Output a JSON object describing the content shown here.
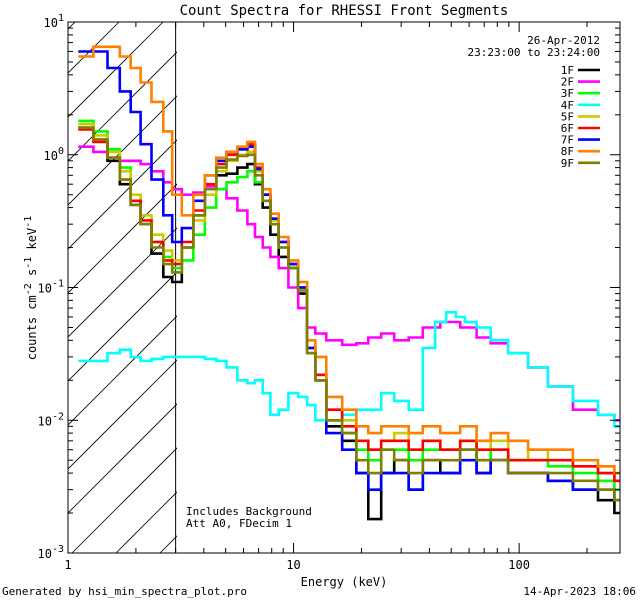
{
  "chart_data": {
    "type": "line",
    "title": "Count Spectra for RHESSI Front Segments",
    "xlabel": "Energy (keV)",
    "ylabel": "counts cm-2 s-1 keV-1",
    "xscale": "log",
    "yscale": "log",
    "xlim": [
      1,
      280
    ],
    "ylim": [
      0.001,
      10
    ],
    "x_ticks": [
      {
        "value": 1,
        "label": "1"
      },
      {
        "value": 10,
        "label": "10"
      },
      {
        "value": 100,
        "label": "100"
      }
    ],
    "y_ticks": [
      {
        "value": 0.001,
        "mant": "10",
        "exp": "-3"
      },
      {
        "value": 0.01,
        "mant": "10",
        "exp": "-2"
      },
      {
        "value": 0.1,
        "mant": "10",
        "exp": "-1"
      },
      {
        "value": 1,
        "mant": "10",
        "exp": "0"
      },
      {
        "value": 10,
        "mant": "10",
        "exp": "1"
      }
    ],
    "date": "26-Apr-2012",
    "time_range": "23:23:00 to 23:24:00",
    "annotations": [
      "Includes Background",
      "Att A0, FDecim 1"
    ],
    "shaded_below_energy": 3,
    "legend_position": "top-right",
    "series": [
      {
        "name": "1F",
        "color": "#000000",
        "x": [
          1.2,
          1.4,
          1.6,
          1.8,
          2.0,
          2.2,
          2.5,
          2.8,
          3.0,
          3.4,
          3.8,
          4.3,
          4.8,
          5.3,
          6.0,
          6.5,
          7.0,
          7.6,
          8.2,
          9.0,
          10,
          11,
          12,
          13,
          15,
          18,
          20,
          23,
          26,
          30,
          35,
          40,
          50,
          60,
          70,
          80,
          100,
          120,
          150,
          200,
          250,
          280
        ],
        "y": [
          1.6,
          1.3,
          0.9,
          0.6,
          0.42,
          0.3,
          0.18,
          0.12,
          0.11,
          0.2,
          0.35,
          0.55,
          0.7,
          0.72,
          0.8,
          0.85,
          0.6,
          0.4,
          0.25,
          0.17,
          0.14,
          0.09,
          0.032,
          0.02,
          0.009,
          0.007,
          0.004,
          0.0018,
          0.004,
          0.005,
          0.003,
          0.005,
          0.004,
          0.006,
          0.004,
          0.005,
          0.004,
          0.004,
          0.0035,
          0.003,
          0.0025,
          0.002
        ]
      },
      {
        "name": "2F",
        "color": "#ff00ff",
        "x": [
          1.2,
          1.4,
          1.6,
          1.8,
          2.0,
          2.2,
          2.5,
          2.8,
          3.0,
          3.4,
          3.8,
          4.3,
          4.8,
          5.3,
          6.0,
          6.5,
          7.0,
          7.6,
          8.2,
          9.0,
          10,
          11,
          12,
          13,
          15,
          18,
          20,
          23,
          26,
          30,
          35,
          40,
          50,
          60,
          70,
          80,
          100,
          120,
          150,
          200,
          250,
          280
        ],
        "y": [
          1.15,
          1.05,
          0.95,
          0.9,
          0.9,
          0.85,
          0.75,
          0.62,
          0.55,
          0.5,
          0.52,
          0.58,
          0.55,
          0.47,
          0.38,
          0.3,
          0.24,
          0.2,
          0.17,
          0.14,
          0.1,
          0.07,
          0.05,
          0.045,
          0.04,
          0.037,
          0.038,
          0.042,
          0.045,
          0.04,
          0.042,
          0.05,
          0.055,
          0.05,
          0.042,
          0.038,
          0.032,
          0.025,
          0.018,
          0.012,
          0.011,
          0.01
        ]
      },
      {
        "name": "3F",
        "color": "#00ff00",
        "x": [
          1.2,
          1.4,
          1.6,
          1.8,
          2.0,
          2.2,
          2.5,
          2.8,
          3.0,
          3.4,
          3.8,
          4.3,
          4.8,
          5.3,
          6.0,
          6.5,
          7.0,
          7.6,
          8.2,
          9.0,
          10,
          11,
          12,
          13,
          15,
          18,
          20,
          23,
          26,
          30,
          35,
          40,
          50,
          60,
          70,
          80,
          100,
          120,
          150,
          200,
          250,
          280
        ],
        "y": [
          1.8,
          1.5,
          1.1,
          0.8,
          0.45,
          0.3,
          0.22,
          0.17,
          0.14,
          0.16,
          0.25,
          0.4,
          0.55,
          0.62,
          0.68,
          0.75,
          0.62,
          0.45,
          0.3,
          0.2,
          0.14,
          0.1,
          0.035,
          0.022,
          0.01,
          0.008,
          0.006,
          0.005,
          0.006,
          0.006,
          0.005,
          0.006,
          0.006,
          0.007,
          0.005,
          0.006,
          0.005,
          0.005,
          0.0045,
          0.004,
          0.0035,
          0.003
        ]
      },
      {
        "name": "4F",
        "color": "#00ffff",
        "x": [
          1.2,
          1.4,
          1.6,
          1.8,
          2.0,
          2.2,
          2.5,
          2.8,
          3.0,
          3.4,
          3.8,
          4.3,
          4.8,
          5.3,
          6.0,
          6.5,
          7.0,
          7.6,
          8.2,
          9.0,
          10,
          11,
          12,
          13,
          15,
          18,
          20,
          23,
          26,
          30,
          35,
          40,
          45,
          50,
          55,
          60,
          70,
          80,
          100,
          120,
          150,
          200,
          250,
          280
        ],
        "y": [
          0.028,
          0.028,
          0.032,
          0.034,
          0.03,
          0.028,
          0.029,
          0.03,
          0.03,
          0.03,
          0.03,
          0.029,
          0.028,
          0.025,
          0.02,
          0.019,
          0.02,
          0.016,
          0.011,
          0.012,
          0.016,
          0.015,
          0.013,
          0.01,
          0.01,
          0.011,
          0.012,
          0.012,
          0.016,
          0.014,
          0.012,
          0.035,
          0.055,
          0.065,
          0.06,
          0.055,
          0.05,
          0.04,
          0.032,
          0.025,
          0.018,
          0.014,
          0.011,
          0.009
        ]
      },
      {
        "name": "5F",
        "color": "#cccc00",
        "x": [
          1.2,
          1.4,
          1.6,
          1.8,
          2.0,
          2.2,
          2.5,
          2.8,
          3.0,
          3.4,
          3.8,
          4.3,
          4.8,
          5.3,
          6.0,
          6.5,
          7.0,
          7.6,
          8.2,
          9.0,
          10,
          11,
          12,
          13,
          15,
          18,
          20,
          23,
          26,
          30,
          35,
          40,
          50,
          60,
          70,
          80,
          100,
          120,
          150,
          200,
          250,
          280
        ],
        "y": [
          1.7,
          1.4,
          1.05,
          0.75,
          0.5,
          0.35,
          0.25,
          0.19,
          0.16,
          0.2,
          0.32,
          0.5,
          0.75,
          0.9,
          1.0,
          1.05,
          0.75,
          0.5,
          0.32,
          0.22,
          0.15,
          0.1,
          0.035,
          0.022,
          0.012,
          0.01,
          0.007,
          0.006,
          0.007,
          0.008,
          0.006,
          0.007,
          0.006,
          0.007,
          0.006,
          0.007,
          0.005,
          0.006,
          0.005,
          0.0045,
          0.004,
          0.0035
        ]
      },
      {
        "name": "6F",
        "color": "#ff0000",
        "x": [
          1.2,
          1.4,
          1.6,
          1.8,
          2.0,
          2.2,
          2.5,
          2.8,
          3.0,
          3.4,
          3.8,
          4.3,
          4.8,
          5.3,
          6.0,
          6.5,
          7.0,
          7.6,
          8.2,
          9.0,
          10,
          11,
          12,
          13,
          15,
          18,
          20,
          23,
          26,
          30,
          35,
          40,
          50,
          60,
          70,
          80,
          100,
          120,
          150,
          200,
          250,
          280
        ],
        "y": [
          1.55,
          1.25,
          0.95,
          0.65,
          0.45,
          0.32,
          0.22,
          0.16,
          0.15,
          0.22,
          0.38,
          0.6,
          0.85,
          1.0,
          1.1,
          1.2,
          0.8,
          0.5,
          0.33,
          0.22,
          0.15,
          0.1,
          0.035,
          0.022,
          0.012,
          0.009,
          0.007,
          0.006,
          0.007,
          0.007,
          0.006,
          0.007,
          0.006,
          0.007,
          0.006,
          0.006,
          0.005,
          0.005,
          0.005,
          0.0045,
          0.004,
          0.0035
        ]
      },
      {
        "name": "7F",
        "color": "#0000ff",
        "x": [
          1.2,
          1.4,
          1.6,
          1.8,
          2.0,
          2.2,
          2.5,
          2.8,
          3.0,
          3.4,
          3.8,
          4.3,
          4.8,
          5.3,
          6.0,
          6.5,
          7.0,
          7.6,
          8.2,
          9.0,
          10,
          11,
          12,
          13,
          15,
          18,
          20,
          23,
          26,
          30,
          35,
          40,
          50,
          60,
          70,
          80,
          100,
          120,
          150,
          200,
          250,
          280
        ],
        "y": [
          6.0,
          6.0,
          4.5,
          3.0,
          2.1,
          1.2,
          0.65,
          0.35,
          0.22,
          0.28,
          0.45,
          0.7,
          0.9,
          1.05,
          1.1,
          1.15,
          0.78,
          0.5,
          0.33,
          0.22,
          0.15,
          0.1,
          0.035,
          0.02,
          0.008,
          0.006,
          0.004,
          0.003,
          0.004,
          0.004,
          0.003,
          0.004,
          0.004,
          0.005,
          0.004,
          0.005,
          0.004,
          0.004,
          0.0035,
          0.003,
          0.003,
          0.0025
        ]
      },
      {
        "name": "8F",
        "color": "#ff7f00",
        "x": [
          1.2,
          1.4,
          1.6,
          1.8,
          2.0,
          2.2,
          2.5,
          2.8,
          3.0,
          3.4,
          3.8,
          4.3,
          4.8,
          5.3,
          6.0,
          6.5,
          7.0,
          7.6,
          8.2,
          9.0,
          10,
          11,
          12,
          13,
          15,
          18,
          20,
          23,
          26,
          30,
          35,
          40,
          50,
          60,
          70,
          80,
          100,
          120,
          150,
          200,
          250,
          280
        ],
        "y": [
          5.5,
          6.5,
          6.5,
          5.5,
          4.5,
          3.5,
          2.5,
          1.5,
          0.5,
          0.35,
          0.5,
          0.7,
          0.95,
          1.05,
          1.15,
          1.25,
          0.85,
          0.55,
          0.36,
          0.24,
          0.16,
          0.11,
          0.04,
          0.03,
          0.015,
          0.012,
          0.009,
          0.008,
          0.009,
          0.009,
          0.008,
          0.009,
          0.008,
          0.009,
          0.007,
          0.008,
          0.007,
          0.006,
          0.006,
          0.005,
          0.0045,
          0.004
        ]
      },
      {
        "name": "9F",
        "color": "#808000",
        "x": [
          1.2,
          1.4,
          1.6,
          1.8,
          2.0,
          2.2,
          2.5,
          2.8,
          3.0,
          3.4,
          3.8,
          4.3,
          4.8,
          5.3,
          6.0,
          6.5,
          7.0,
          7.6,
          8.2,
          9.0,
          10,
          11,
          12,
          13,
          15,
          18,
          20,
          23,
          26,
          30,
          35,
          40,
          50,
          60,
          70,
          80,
          100,
          120,
          150,
          200,
          250,
          280
        ],
        "y": [
          1.6,
          1.3,
          0.95,
          0.65,
          0.42,
          0.3,
          0.2,
          0.15,
          0.13,
          0.2,
          0.35,
          0.55,
          0.8,
          0.92,
          0.98,
          1.0,
          0.7,
          0.45,
          0.3,
          0.2,
          0.14,
          0.095,
          0.032,
          0.02,
          0.01,
          0.008,
          0.005,
          0.004,
          0.006,
          0.005,
          0.004,
          0.005,
          0.005,
          0.006,
          0.005,
          0.005,
          0.004,
          0.004,
          0.004,
          0.0035,
          0.003,
          0.0025
        ]
      }
    ]
  },
  "footer": {
    "generated_by": "Generated by hsi_min_spectra_plot.pro",
    "timestamp": "14-Apr-2023 18:06"
  }
}
